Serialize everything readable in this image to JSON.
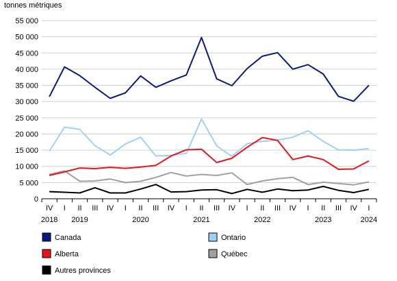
{
  "chart_data": {
    "type": "line",
    "ylabel": "tonnes métriques",
    "ylim": [
      0,
      55000
    ],
    "yticks": [
      0,
      5000,
      10000,
      15000,
      20000,
      25000,
      30000,
      35000,
      40000,
      45000,
      50000,
      55000
    ],
    "ytick_labels": [
      "0",
      "5 000",
      "10 000",
      "15 000",
      "20 000",
      "25 000",
      "30 000",
      "35 000",
      "40 000",
      "45 000",
      "50 000",
      "55 000"
    ],
    "quarters": [
      "IV",
      "I",
      "II",
      "III",
      "IV",
      "I",
      "II",
      "III",
      "IV",
      "I",
      "II",
      "III",
      "IV",
      "I",
      "II",
      "III",
      "IV",
      "I",
      "II",
      "III",
      "IV",
      "I"
    ],
    "year_labels": [
      {
        "label": "2018",
        "index": 0
      },
      {
        "label": "2019",
        "index": 2
      },
      {
        "label": "2020",
        "index": 6
      },
      {
        "label": "2021",
        "index": 10
      },
      {
        "label": "2022",
        "index": 14
      },
      {
        "label": "2023",
        "index": 18
      },
      {
        "label": "2024",
        "index": 21
      }
    ],
    "grid": true,
    "legend_position": "bottom",
    "series": [
      {
        "name": "Canada",
        "color": "#0a1a7a",
        "values": [
          31500,
          40700,
          38000,
          34400,
          31000,
          32700,
          37900,
          34400,
          36400,
          38200,
          49800,
          37000,
          34900,
          40200,
          44000,
          45100,
          40000,
          41400,
          38500,
          31600,
          30100,
          35000
        ]
      },
      {
        "name": "Ontario",
        "color": "#9fd0f5",
        "values": [
          14700,
          22100,
          21400,
          16400,
          13500,
          16900,
          19000,
          13200,
          13400,
          14000,
          24600,
          16300,
          13100,
          17000,
          17700,
          18100,
          19000,
          21000,
          17700,
          15100,
          15000,
          15500
        ]
      },
      {
        "name": "Alberta",
        "color": "#e8141b",
        "values": [
          7200,
          8300,
          9500,
          9300,
          9700,
          9400,
          9800,
          10300,
          13200,
          15100,
          15300,
          11200,
          12500,
          15900,
          18900,
          18000,
          12100,
          13200,
          12100,
          9100,
          9200,
          11700
        ]
      },
      {
        "name": "Québec",
        "color": "#a0a0a0",
        "values": [
          7500,
          8600,
          5400,
          5500,
          6100,
          5000,
          5400,
          6600,
          8100,
          7000,
          7500,
          7200,
          8000,
          4400,
          5500,
          6200,
          6600,
          4400,
          5100,
          4700,
          4300,
          5200
        ]
      },
      {
        "name": "Autres provinces",
        "color": "#000000",
        "values": [
          2200,
          2000,
          1800,
          3400,
          1800,
          1800,
          3000,
          4400,
          2100,
          2200,
          2700,
          2800,
          1600,
          2900,
          2000,
          3000,
          2500,
          2700,
          3800,
          2600,
          1900,
          2900
        ]
      }
    ]
  }
}
